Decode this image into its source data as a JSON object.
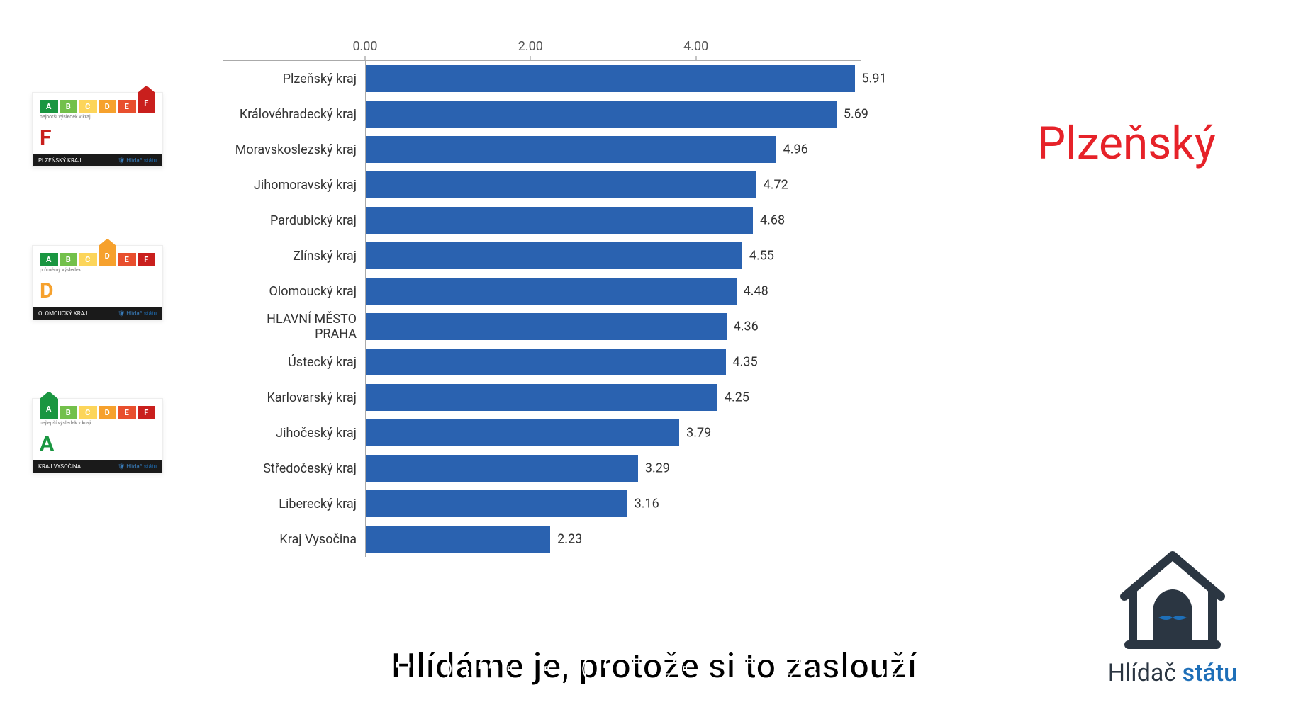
{
  "chart": {
    "type": "bar-horizontal",
    "xlim": [
      0,
      6
    ],
    "xticks": [
      {
        "pos": 0.0,
        "label": "0.00"
      },
      {
        "pos": 2.0,
        "label": "2.00"
      },
      {
        "pos": 4.0,
        "label": "4.00"
      }
    ],
    "bar_color": "#2a62b0",
    "label_fontsize": 18,
    "value_fontsize": 18,
    "axis_color": "#aaaaaa",
    "text_color": "#333333",
    "background_color": "#ffffff",
    "rows": [
      {
        "label": "Plzeňský kraj",
        "value": 5.91
      },
      {
        "label": "Královéhradecký kraj",
        "value": 5.69
      },
      {
        "label": "Moravskoslezský kraj",
        "value": 4.96
      },
      {
        "label": "Jihomoravský kraj",
        "value": 4.72
      },
      {
        "label": "Pardubický kraj",
        "value": 4.68
      },
      {
        "label": "Zlínský kraj",
        "value": 4.55
      },
      {
        "label": "Olomoucký kraj",
        "value": 4.48
      },
      {
        "label": "HLAVNÍ MĚSTO PRAHA",
        "value": 4.36
      },
      {
        "label": "Ústecký kraj",
        "value": 4.35
      },
      {
        "label": "Karlovarský kraj",
        "value": 4.25
      },
      {
        "label": "Jihočeský kraj",
        "value": 3.79
      },
      {
        "label": "Středočeský kraj",
        "value": 3.29
      },
      {
        "label": "Liberecký kraj",
        "value": 3.16
      },
      {
        "label": "Kraj Vysočina",
        "value": 2.23
      }
    ]
  },
  "rating_cards": {
    "segment_labels": [
      "A",
      "B",
      "C",
      "D",
      "E",
      "F"
    ],
    "segment_colors": [
      "#1a9641",
      "#73c04b",
      "#fcd55a",
      "#f6a12d",
      "#e84f2e",
      "#c91f1d"
    ],
    "footer_brand": "Hlídač",
    "footer_accent": "státu",
    "cards": [
      {
        "grade": "F",
        "grade_color": "#c91f1d",
        "raised_index": 5,
        "subtitle": "nejhorší výsledek v kraji",
        "footer_left": "PLZEŇSKÝ KRAJ"
      },
      {
        "grade": "D",
        "grade_color": "#f6a12d",
        "raised_index": 3,
        "subtitle": "průměrný výsledek",
        "footer_left": "OLOMOUCKÝ KRAJ"
      },
      {
        "grade": "A",
        "grade_color": "#1a9641",
        "raised_index": 0,
        "subtitle": "nejlepší výsledek v kraji",
        "footer_left": "KRAJ VYSOČINA"
      }
    ]
  },
  "headline": {
    "text": "Plzeňský",
    "color": "#e62229",
    "fontsize": 64
  },
  "caption": {
    "text": "Hlídáme je, protože si to zaslouží",
    "fontsize": 50
  },
  "logo": {
    "word1": "Hlídač",
    "word2": "státu",
    "word1_color": "#2b3642",
    "word2_color": "#1e6fb8",
    "icon_stroke": "#2b3642",
    "icon_fill": "#2b3642",
    "icon_eye": "#1e6fb8"
  }
}
